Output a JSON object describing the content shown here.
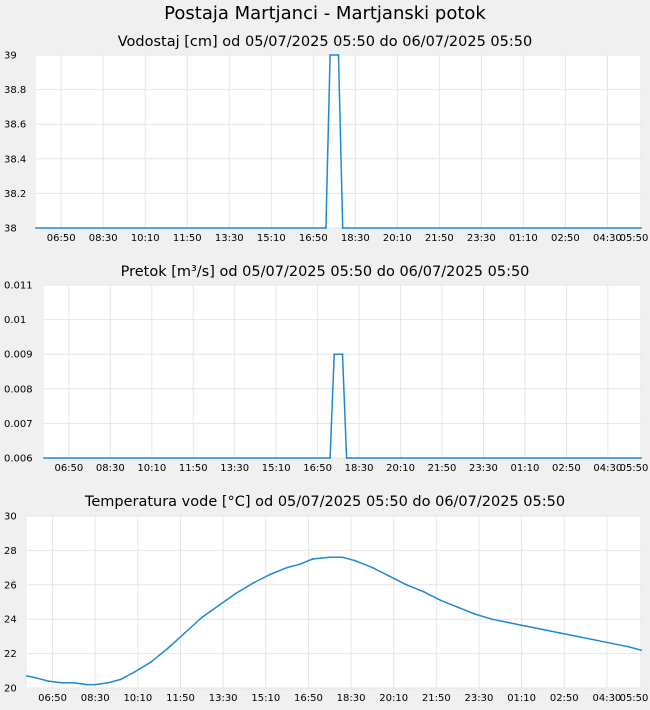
{
  "page": {
    "title": "Postaja Martjanci - Martjanski potok"
  },
  "styles": {
    "background": "#f0f0f0",
    "plot_background": "#ffffff",
    "grid_color": "#e6e6e6",
    "line_color": "#1f88d4"
  },
  "chart_data": [
    {
      "type": "line",
      "title": "Vodostaj [cm] od 05/07/2025 05:50 do 06/07/2025 05:50",
      "xlabel": "",
      "ylabel": "",
      "x_unit": "hours",
      "x_range": [
        "05/07/2025 05:50",
        "06/07/2025 05:50"
      ],
      "xticks": [
        "06:50",
        "08:30",
        "10:10",
        "11:50",
        "13:30",
        "15:10",
        "16:50",
        "18:30",
        "20:10",
        "21:50",
        "23:30",
        "01:10",
        "02:50",
        "04:30",
        "05:50"
      ],
      "yticks": [
        "38",
        "38.2",
        "38.4",
        "38.6",
        "38.8",
        "39"
      ],
      "ylim": [
        38,
        39
      ],
      "grid": true,
      "series": [
        {
          "x": [
            "05/07/2025 05:50",
            "05/07/2025 17:20",
            "05/07/2025 17:30",
            "05/07/2025 17:50",
            "05/07/2025 18:00",
            "05/07/2025 18:10",
            "06/07/2025 05:50"
          ],
          "values": [
            38,
            38,
            39,
            39,
            38,
            38,
            38
          ]
        }
      ]
    },
    {
      "type": "line",
      "title": "Pretok [m³/s] od 05/07/2025 05:50 do 06/07/2025 05:50",
      "xlabel": "",
      "ylabel": "",
      "x_range": [
        "05/07/2025 05:50",
        "06/07/2025 05:50"
      ],
      "xticks": [
        "06:50",
        "08:30",
        "10:10",
        "11:50",
        "13:30",
        "15:10",
        "16:50",
        "18:30",
        "20:10",
        "21:50",
        "23:30",
        "01:10",
        "02:50",
        "04:30",
        "05:50"
      ],
      "yticks": [
        "0.006",
        "0.007",
        "0.008",
        "0.009",
        "0.01",
        "0.011"
      ],
      "ylim": [
        0.006,
        0.011
      ],
      "grid": true,
      "series": [
        {
          "x": [
            "05/07/2025 05:50",
            "05/07/2025 17:20",
            "05/07/2025 17:30",
            "05/07/2025 17:50",
            "05/07/2025 18:00",
            "05/07/2025 18:10",
            "06/07/2025 05:50"
          ],
          "values": [
            0.006,
            0.006,
            0.009,
            0.009,
            0.006,
            0.006,
            0.006
          ]
        }
      ]
    },
    {
      "type": "line",
      "title": "Temperatura vode [°C] od 05/07/2025 05:50 do 06/07/2025 05:50",
      "xlabel": "",
      "ylabel": "",
      "x_range": [
        "05/07/2025 05:50",
        "06/07/2025 05:50"
      ],
      "xticks": [
        "06:50",
        "08:30",
        "10:10",
        "11:50",
        "13:30",
        "15:10",
        "16:50",
        "18:30",
        "20:10",
        "21:50",
        "23:30",
        "01:10",
        "02:50",
        "04:30",
        "05:50"
      ],
      "yticks": [
        "20",
        "22",
        "24",
        "26",
        "28",
        "30"
      ],
      "ylim": [
        20,
        30
      ],
      "grid": true,
      "series": [
        {
          "x": [
            "05/07/2025 05:50",
            "05/07/2025 06:10",
            "05/07/2025 06:40",
            "05/07/2025 07:10",
            "05/07/2025 07:40",
            "05/07/2025 08:10",
            "05/07/2025 08:30",
            "05/07/2025 09:00",
            "05/07/2025 09:30",
            "05/07/2025 10:00",
            "05/07/2025 10:40",
            "05/07/2025 11:20",
            "05/07/2025 12:00",
            "05/07/2025 12:40",
            "05/07/2025 13:20",
            "05/07/2025 14:00",
            "05/07/2025 14:40",
            "05/07/2025 15:20",
            "05/07/2025 16:00",
            "05/07/2025 16:30",
            "05/07/2025 17:00",
            "05/07/2025 17:40",
            "05/07/2025 18:10",
            "05/07/2025 18:40",
            "05/07/2025 19:20",
            "05/07/2025 20:00",
            "05/07/2025 20:40",
            "05/07/2025 21:20",
            "05/07/2025 22:00",
            "05/07/2025 22:40",
            "05/07/2025 23:20",
            "06/07/2025 00:00",
            "06/07/2025 00:40",
            "06/07/2025 01:20",
            "06/07/2025 02:00",
            "06/07/2025 02:40",
            "06/07/2025 03:20",
            "06/07/2025 04:00",
            "06/07/2025 04:40",
            "06/07/2025 05:20",
            "06/07/2025 05:50"
          ],
          "values": [
            20.7,
            20.6,
            20.4,
            20.3,
            20.3,
            20.2,
            20.2,
            20.3,
            20.5,
            20.9,
            21.5,
            22.3,
            23.2,
            24.1,
            24.8,
            25.5,
            26.1,
            26.6,
            27.0,
            27.2,
            27.5,
            27.6,
            27.6,
            27.4,
            27.0,
            26.5,
            26.0,
            25.6,
            25.1,
            24.7,
            24.3,
            24.0,
            23.8,
            23.6,
            23.4,
            23.2,
            23.0,
            22.8,
            22.6,
            22.4,
            22.2
          ]
        }
      ]
    }
  ]
}
